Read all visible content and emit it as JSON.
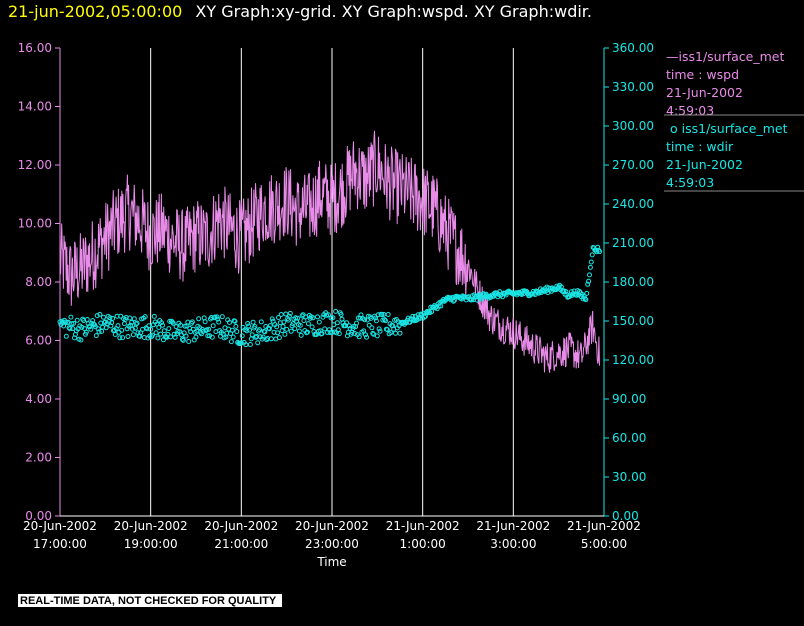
{
  "header": {
    "time": "21-jun-2002,05:00:00",
    "titles": "XY Graph:xy-grid.  XY Graph:wspd.  XY Graph:wdir."
  },
  "legend": {
    "items": [
      {
        "line1": "iss1/surface_met",
        "line2": "time : wspd",
        "line3": "21-Jun-2002",
        "line4": "4:59:03",
        "marker": "line",
        "color": "#e98be9"
      },
      {
        "line1": "iss1/surface_met",
        "line2": "time : wdir",
        "line3": "21-Jun-2002",
        "line4": "4:59:03",
        "marker": "circle",
        "color": "#19e6e6"
      }
    ]
  },
  "footer": {
    "note": "REAL-TIME DATA, NOT CHECKED FOR QUALITY"
  },
  "chart_data": {
    "type": "line",
    "xlabel": "Time",
    "x_range_hours": [
      17.0,
      29.0
    ],
    "x_ticks": [
      {
        "line1": "20-Jun-2002",
        "line2": "17:00:00"
      },
      {
        "line1": "20-Jun-2002",
        "line2": "19:00:00"
      },
      {
        "line1": "20-Jun-2002",
        "line2": "21:00:00"
      },
      {
        "line1": "20-Jun-2002",
        "line2": "23:00:00"
      },
      {
        "line1": "21-Jun-2002",
        "line2": "1:00:00"
      },
      {
        "line1": "21-Jun-2002",
        "line2": "3:00:00"
      },
      {
        "line1": "21-Jun-2002",
        "line2": "5:00:00"
      }
    ],
    "grid": "vertical",
    "left_axis": {
      "ylim": [
        0,
        16
      ],
      "ticks": [
        "0.00",
        "2.00",
        "4.00",
        "6.00",
        "8.00",
        "10.00",
        "12.00",
        "14.00",
        "16.00"
      ],
      "color": "#e98be9"
    },
    "right_axis": {
      "ylim": [
        0,
        360
      ],
      "ticks": [
        "0.00",
        "30.00",
        "60.00",
        "90.00",
        "120.00",
        "150.00",
        "180.00",
        "210.00",
        "240.00",
        "270.00",
        "300.00",
        "330.00",
        "360.00"
      ],
      "color": "#19e6e6"
    },
    "series": [
      {
        "name": "wspd",
        "axis": "left",
        "style": "line",
        "color": "#e98be9",
        "x": [
          17.0,
          17.25,
          17.5,
          17.75,
          18.0,
          18.25,
          18.5,
          18.75,
          19.0,
          19.25,
          19.5,
          19.75,
          20.0,
          20.25,
          20.5,
          20.75,
          21.0,
          21.25,
          21.5,
          21.75,
          22.0,
          22.25,
          22.5,
          22.75,
          23.0,
          23.25,
          23.5,
          23.75,
          24.0,
          24.25,
          24.5,
          24.75,
          25.0,
          25.25,
          25.5,
          25.75,
          26.0,
          26.25,
          26.5,
          26.75,
          27.0,
          27.25,
          27.5,
          27.75,
          28.0,
          28.25,
          28.5,
          28.75,
          28.9
        ],
        "y": [
          8.8,
          8.2,
          8.5,
          9.0,
          9.5,
          10.0,
          10.4,
          10.1,
          9.6,
          9.8,
          9.4,
          9.2,
          9.6,
          9.5,
          10.2,
          9.8,
          9.5,
          10.0,
          10.5,
          10.6,
          10.8,
          10.4,
          10.5,
          11.0,
          10.8,
          11.2,
          11.8,
          11.5,
          12.0,
          11.4,
          11.2,
          11.0,
          10.8,
          10.5,
          9.8,
          9.2,
          8.6,
          7.6,
          6.8,
          6.5,
          6.3,
          6.0,
          5.7,
          5.4,
          5.6,
          5.7,
          5.4,
          6.5,
          5.5
        ],
        "noise": 1.3
      },
      {
        "name": "wdir",
        "axis": "right",
        "style": "circles",
        "color": "#19e6e6",
        "x": [
          17.0,
          17.5,
          18.0,
          18.5,
          19.0,
          19.5,
          20.0,
          20.5,
          21.0,
          21.5,
          22.0,
          22.5,
          23.0,
          23.5,
          24.0,
          24.5,
          25.0,
          25.25,
          25.5,
          25.75,
          26.0,
          26.5,
          27.0,
          27.5,
          27.75,
          28.0,
          28.2,
          28.4,
          28.6,
          28.75,
          28.9
        ],
        "y": [
          147,
          144,
          148,
          145,
          146,
          141,
          143,
          146,
          140,
          142,
          148,
          147,
          150,
          146,
          146,
          148,
          154,
          160,
          166,
          168,
          167,
          170,
          171,
          172,
          174,
          176,
          170,
          172,
          167,
          205,
          205
        ],
        "noise": 9
      }
    ]
  }
}
